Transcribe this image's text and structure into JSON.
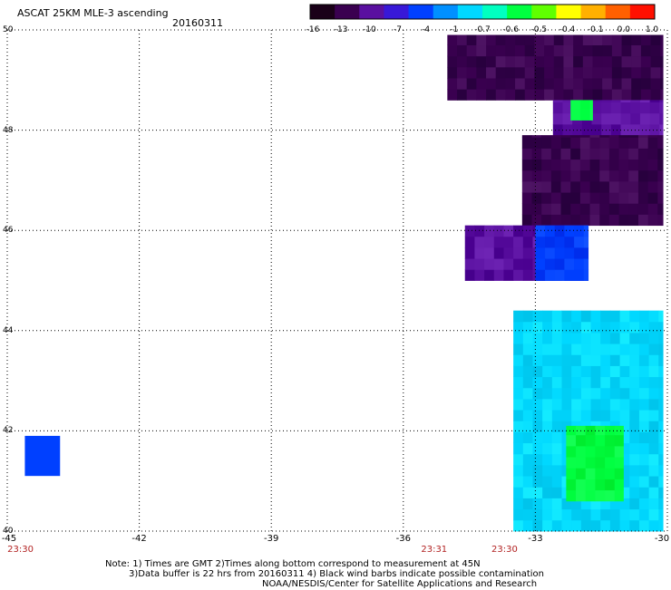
{
  "header": {
    "title": "ASCAT 25KM MLE-3 ascending",
    "date": "20160311"
  },
  "colorbar": {
    "labels": [
      "-16",
      "-13",
      "-10",
      "-7",
      "-4",
      "-1",
      "-0.7",
      "-0.6",
      "-0.5",
      "-0.4",
      "-0.1",
      "0.0",
      "1.0"
    ],
    "colors": [
      "#1a0018",
      "#3a0050",
      "#5a10a0",
      "#3818d8",
      "#0040ff",
      "#0090ff",
      "#00d8ff",
      "#00ffc0",
      "#00ff40",
      "#60ff00",
      "#ffff00",
      "#ffb000",
      "#ff6000",
      "#ff1000"
    ]
  },
  "axes": {
    "x_ticks": [
      "-45",
      "-42",
      "-39",
      "-36",
      "-33",
      "-30"
    ],
    "y_ticks": [
      "50",
      "48",
      "46",
      "44",
      "42",
      "40"
    ],
    "x_range": [
      -45,
      -30
    ],
    "y_range": [
      40,
      50
    ]
  },
  "time_labels": [
    {
      "lon": -44.7,
      "text": "23:30"
    },
    {
      "lon": -35.3,
      "text": "23:31"
    },
    {
      "lon": -33.7,
      "text": "23:30"
    }
  ],
  "notes": {
    "line1": "Note: 1) Times are GMT 2)Times along bottom correspond to measurement at 45N",
    "line2": "3)Data buffer is 22 hrs from 20160311 4) Black wind barbs indicate possible contamination",
    "line3": "NOAA/NESDIS/Center for Satellite Applications and Research"
  },
  "map_data": {
    "type": "swath",
    "cell_deg": 0.22,
    "regions": [
      {
        "name": "north-band",
        "lon": [
          -35.0,
          -30.1
        ],
        "lat": [
          48.6,
          49.9
        ],
        "value": "-13"
      },
      {
        "name": "north-east-strip",
        "lon": [
          -32.6,
          -30.1
        ],
        "lat": [
          47.9,
          48.6
        ],
        "value": "-10"
      },
      {
        "name": "north-green-patch",
        "lon": [
          -32.2,
          -31.7
        ],
        "lat": [
          48.2,
          48.6
        ],
        "value": "-0.5"
      },
      {
        "name": "mid-band",
        "lon": [
          -33.3,
          -30.1
        ],
        "lat": [
          46.1,
          47.9
        ],
        "value": "-13"
      },
      {
        "name": "mid-lower-band",
        "lon": [
          -34.6,
          -31.8
        ],
        "lat": [
          45.0,
          46.1
        ],
        "value": "-10"
      },
      {
        "name": "mid-blue-edge",
        "lon": [
          -33.0,
          -31.8
        ],
        "lat": [
          45.0,
          46.1
        ],
        "value": "-4"
      },
      {
        "name": "cyan-southern-block",
        "lon": [
          -33.5,
          -30.1
        ],
        "lat": [
          40.0,
          44.4
        ],
        "value": "-0.7"
      },
      {
        "name": "green-core",
        "lon": [
          -32.3,
          -31.0
        ],
        "lat": [
          40.6,
          42.1
        ],
        "value": "-0.5"
      },
      {
        "name": "isolated-cell",
        "lon": [
          -44.6,
          -43.8
        ],
        "lat": [
          41.1,
          41.9
        ],
        "value": "-4"
      }
    ]
  }
}
